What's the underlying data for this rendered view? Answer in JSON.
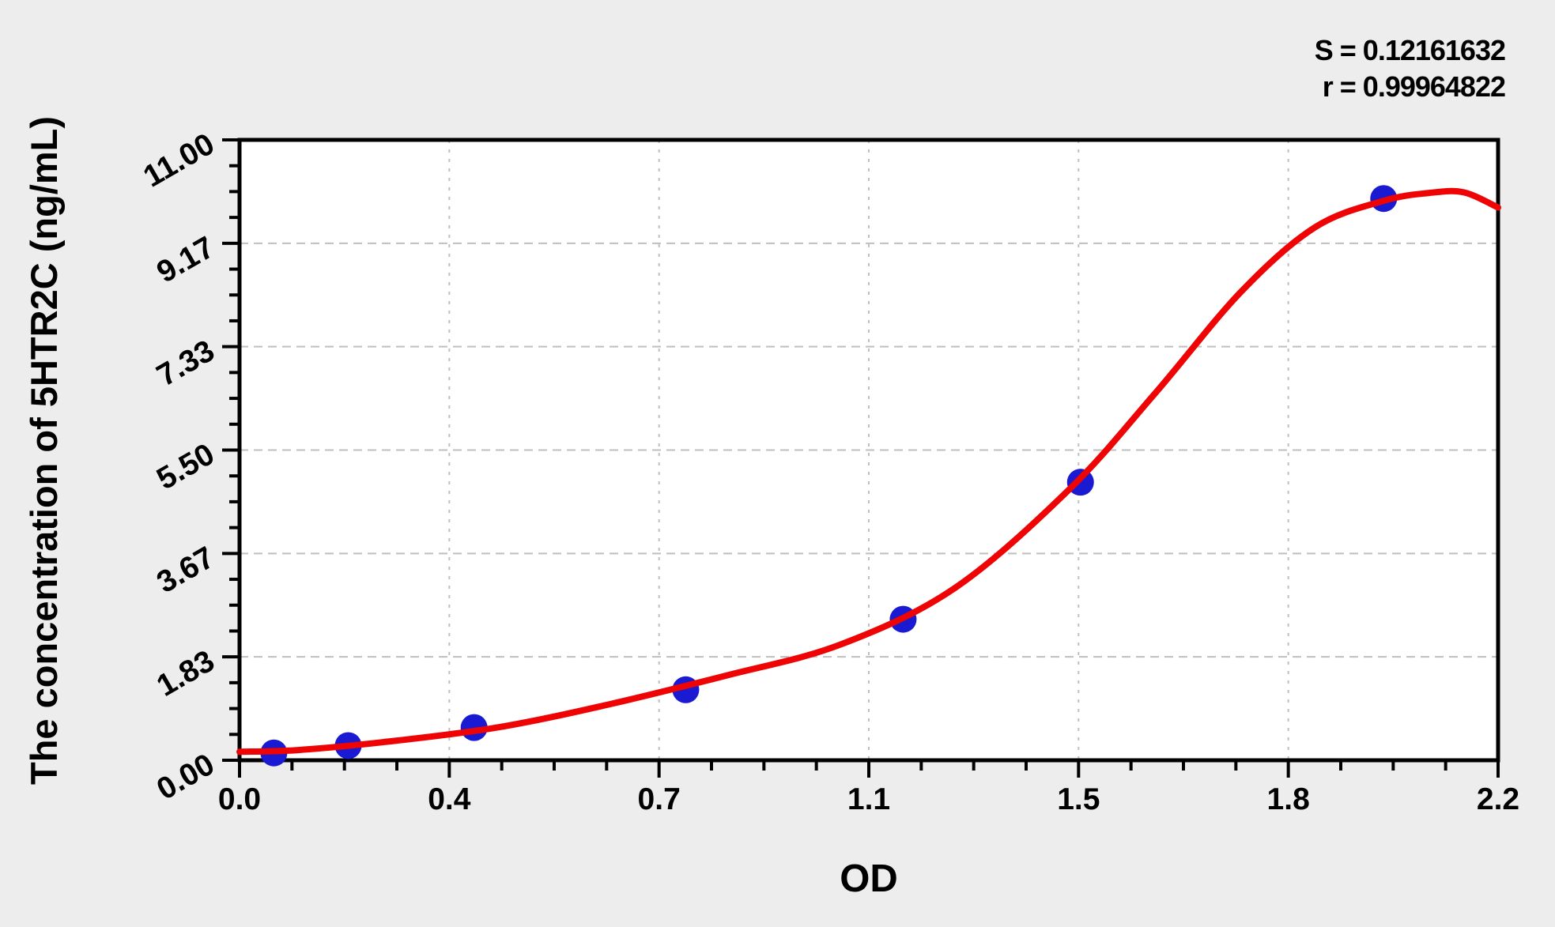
{
  "figure": {
    "background": "#ededed"
  },
  "stats": {
    "s_line": "S = 0.12161632",
    "r_line": "r = 0.99964822"
  },
  "chart_data": {
    "type": "scatter",
    "title": "",
    "xlabel": "OD",
    "ylabel": "The concentration of 5HTR2C (ng/mL)",
    "xlim": [
      0,
      2.2
    ],
    "ylim": [
      0,
      11
    ],
    "x_tick_labels": [
      "0.0",
      "0.4",
      "0.7",
      "1.1",
      "1.5",
      "1.8",
      "2.2"
    ],
    "y_tick_labels": [
      "0.00",
      "1.83",
      "3.67",
      "5.50",
      "7.33",
      "9.17",
      "11.00"
    ],
    "minor_divisions_per_interval": 4,
    "grid": {
      "show": true,
      "style": "dashed",
      "at": "major ticks",
      "color": "#bfbfbf"
    },
    "legend_position": "none",
    "annotations": [
      "S = 0.12161632",
      "r = 0.99964822"
    ],
    "series": [
      {
        "name": "standard-points",
        "type": "scatter",
        "marker": "circle",
        "color": "#1a1ad2",
        "points": [
          [
            0.06,
            0.13
          ],
          [
            0.19,
            0.26
          ],
          [
            0.41,
            0.58
          ],
          [
            0.78,
            1.25
          ],
          [
            1.16,
            2.5
          ],
          [
            1.47,
            4.93
          ],
          [
            2.0,
            9.96
          ]
        ]
      },
      {
        "name": "fitted-curve",
        "type": "line",
        "color": "#ee0404",
        "points": [
          [
            0,
            0.15
          ],
          [
            0.1,
            0.18
          ],
          [
            0.25,
            0.32
          ],
          [
            0.45,
            0.58
          ],
          [
            0.65,
            1.0
          ],
          [
            0.85,
            1.5
          ],
          [
            1.05,
            2.05
          ],
          [
            1.25,
            3.05
          ],
          [
            1.45,
            4.8
          ],
          [
            1.6,
            6.5
          ],
          [
            1.75,
            8.3
          ],
          [
            1.88,
            9.45
          ],
          [
            2.0,
            9.92
          ],
          [
            2.08,
            10.06
          ],
          [
            2.14,
            10.07
          ],
          [
            2.2,
            9.8
          ]
        ]
      }
    ],
    "colors": {
      "background": "#ededed",
      "plot_background": "#ffffff",
      "axis": "#000000",
      "grid": "#bfbfbf",
      "text": "#000000"
    }
  }
}
